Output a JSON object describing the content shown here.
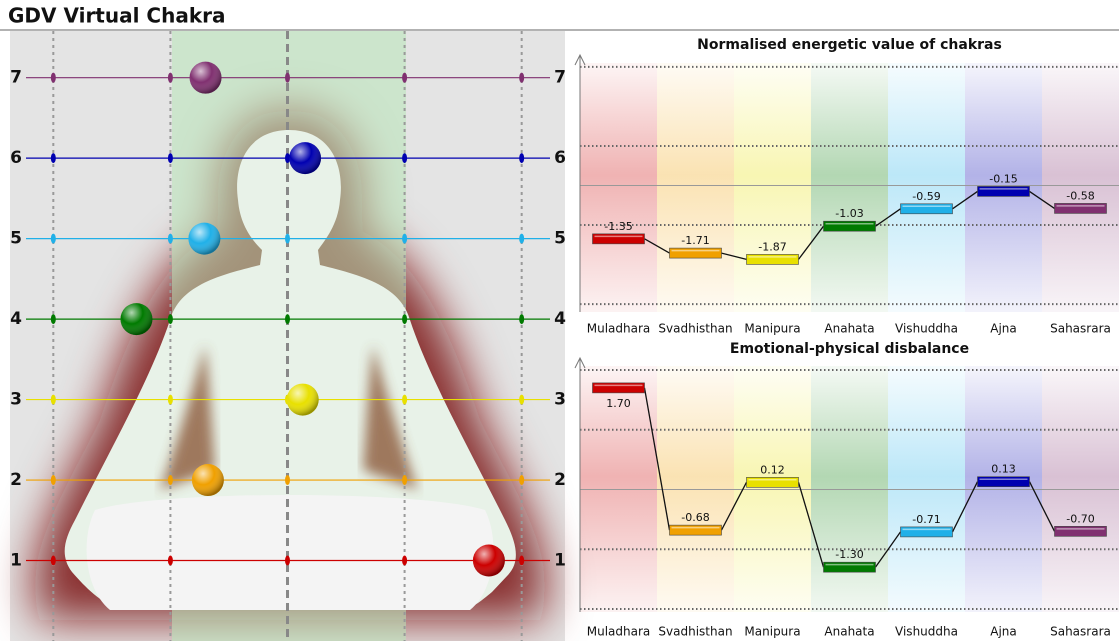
{
  "title": "GDV Virtual Chakra",
  "chart_data": [
    {
      "type": "scatter",
      "xlim": [
        2.37,
        -2.37
      ],
      "xticks": [
        -2,
        -1,
        0,
        1,
        2
      ],
      "ylim": [
        0,
        7.58
      ],
      "yticks": [
        1,
        2,
        3,
        4,
        5,
        6,
        7
      ],
      "x": [
        -1.72,
        0.68,
        -0.13,
        1.29,
        0.71,
        -0.15,
        0.7
      ],
      "y": [
        1,
        2,
        3,
        4,
        5,
        6,
        7
      ],
      "colors": [
        "#cc0000",
        "#f0a000",
        "#e8e000",
        "#007a00",
        "#20b0e8",
        "#0000b0",
        "#803070"
      ]
    },
    {
      "type": "level",
      "title": "Normalised energetic value of chakras",
      "categories": [
        "Muladhara",
        "Svadhisthan",
        "Manipura",
        "Anahata",
        "Vishuddha",
        "Ajna",
        "Sahasrara"
      ],
      "values": [
        -1.35,
        -1.71,
        -1.87,
        -1.03,
        -0.59,
        -0.15,
        -0.58
      ],
      "value_labels": [
        "-1.35",
        "-1.71",
        "-1.87",
        "-1.03",
        "-0.59",
        "-0.15",
        "-0.58"
      ],
      "colors": [
        "#cc0000",
        "#f0a000",
        "#e8e000",
        "#007a00",
        "#20b0e8",
        "#0000b0",
        "#803070"
      ],
      "ylim": [
        -3.2,
        3.3
      ],
      "yticks": [
        -3,
        -1,
        0,
        1,
        3
      ]
    },
    {
      "type": "level",
      "title": "Emotional-physical disbalance",
      "categories": [
        "Muladhara",
        "Svadhisthan",
        "Manipura",
        "Anahata",
        "Vishuddha",
        "Ajna",
        "Sahasrara"
      ],
      "values": [
        1.7,
        -0.68,
        0.12,
        -1.3,
        -0.71,
        0.13,
        -0.7
      ],
      "value_labels": [
        "1.70",
        "-0.68",
        "0.12",
        "-1.30",
        "-0.71",
        "0.13",
        "-0.70"
      ],
      "colors": [
        "#cc0000",
        "#f0a000",
        "#e8e000",
        "#007a00",
        "#20b0e8",
        "#0000b0",
        "#803070"
      ],
      "ylim": [
        -2.05,
        2.2
      ],
      "yticks": [
        -2,
        -1,
        0,
        1,
        2
      ]
    }
  ]
}
